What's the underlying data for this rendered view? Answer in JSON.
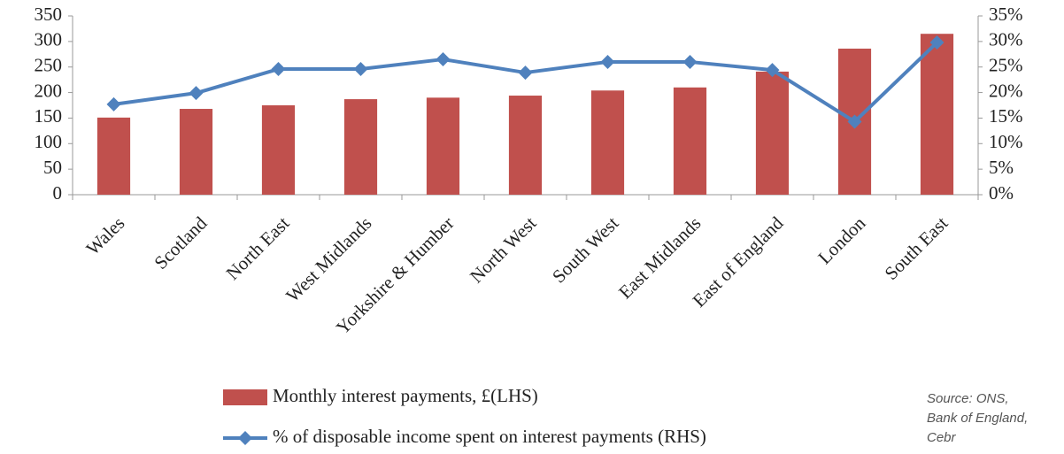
{
  "chart_data": {
    "type": "bar",
    "categories": [
      "Wales",
      "Scotland",
      "North East",
      "West Midlands",
      "Yorkshire & Humber",
      "North West",
      "South West",
      "East Midlands",
      "East of England",
      "London",
      "South East"
    ],
    "series": [
      {
        "name": "Monthly interest payments, £(LHS)",
        "type": "bar",
        "color": "#c0504d",
        "values": [
          151,
          168,
          175,
          187,
          190,
          194,
          204,
          210,
          241,
          286,
          315
        ]
      },
      {
        "name": "% of disposable income spent on interest payments (RHS)",
        "type": "line",
        "axis": "y2",
        "color": "#4f81bd",
        "values": [
          17.7,
          19.9,
          24.6,
          24.6,
          26.5,
          23.9,
          26,
          26,
          24.4,
          14.3,
          29.8
        ]
      }
    ],
    "ylim": [
      0,
      350
    ],
    "yticks": [
      0,
      50,
      100,
      150,
      200,
      250,
      300,
      350
    ],
    "y2lim": [
      0,
      35
    ],
    "y2ticks": [
      {
        "value": 0,
        "label": "0%"
      },
      {
        "value": 5,
        "label": "5%"
      },
      {
        "value": 10,
        "label": "10%"
      },
      {
        "value": 15,
        "label": "15%"
      },
      {
        "value": 20,
        "label": "20%"
      },
      {
        "value": 25,
        "label": "25%"
      },
      {
        "value": 30,
        "label": "30%"
      },
      {
        "value": 35,
        "label": "35%"
      }
    ],
    "grid": false,
    "source": [
      "Source: ONS,",
      "Bank of England,",
      "Cebr"
    ]
  }
}
